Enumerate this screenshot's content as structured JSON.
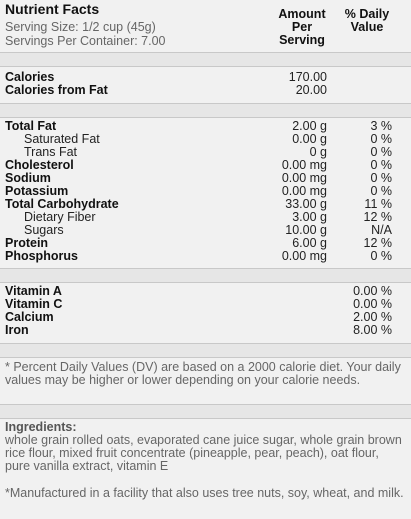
{
  "header": {
    "title": "Nutrient Facts",
    "serving_size": "Serving Size: 1/2 cup (45g)",
    "servings": "Servings Per Container: 7.00",
    "amount_header": "Amount Per Serving",
    "dv_header": "% Daily Value"
  },
  "sections": [
    {
      "rows": [
        {
          "name": "Calories",
          "amount": "170.00"
        },
        {
          "name": "Calories from Fat",
          "amount": "20.00"
        }
      ]
    },
    {
      "rows": [
        {
          "name": "Total Fat",
          "amount": "2.00 g",
          "dv": "3 %"
        },
        {
          "name": "Saturated Fat",
          "amount": "0.00 g",
          "dv": "0 %",
          "sub": true
        },
        {
          "name": "Trans Fat",
          "amount": "0 g",
          "dv": "0 %",
          "sub": true
        },
        {
          "name": "Cholesterol",
          "amount": "0.00 mg",
          "dv": "0 %"
        },
        {
          "name": "Sodium",
          "amount": "0.00 mg",
          "dv": "0 %"
        },
        {
          "name": "Potassium",
          "amount": "0.00 mg",
          "dv": "0 %"
        },
        {
          "name": "Total Carbohydrate",
          "amount": "33.00 g",
          "dv": "11 %"
        },
        {
          "name": "Dietary Fiber",
          "amount": "3.00 g",
          "dv": "12 %",
          "sub": true
        },
        {
          "name": "Sugars",
          "amount": "10.00 g",
          "dv": "N/A",
          "sub": true
        },
        {
          "name": "Protein",
          "amount": "6.00 g",
          "dv": "12 %"
        },
        {
          "name": "Phosphorus",
          "amount": "0.00 mg",
          "dv": "0 %"
        }
      ]
    },
    {
      "rows": [
        {
          "name": "Vitamin A",
          "dv": "0.00 %"
        },
        {
          "name": "Vitamin C",
          "dv": "0.00 %"
        },
        {
          "name": "Calcium",
          "dv": "2.00 %"
        },
        {
          "name": "Iron",
          "dv": "8.00 %"
        }
      ]
    }
  ],
  "footnote": "* Percent Daily Values (DV) are based on a 2000 calorie diet. Your daily values may be higher or lower depending on your calorie needs.",
  "ingredients": {
    "title": "Ingredients:",
    "text": "whole grain rolled oats, evaporated cane juice sugar, whole grain brown rice flour, mixed fruit concentrate (pineapple, pear, peach), oat flour, pure vanilla extract, vitamin E"
  },
  "allergen": "*Manufactured in a facility that also uses tree nuts, soy, wheat, and milk."
}
